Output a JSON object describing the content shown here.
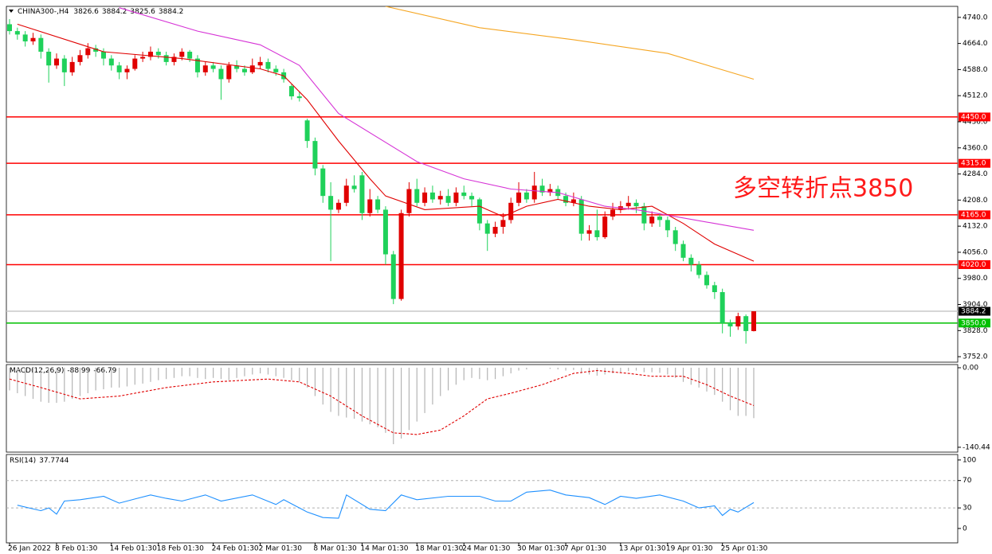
{
  "chart_data": [
    {
      "type": "candlestick",
      "symbol": "CHINA300-,H4",
      "annotation": "多空转折点3850",
      "up_color": "#e00000",
      "down_color": "#1fd15a",
      "categories": [
        "26 Jan 2022",
        null,
        null,
        null,
        null,
        null,
        "8 Feb 01:30",
        null,
        null,
        null,
        null,
        null,
        null,
        "14 Feb 01:30",
        null,
        null,
        null,
        null,
        null,
        "18 Feb 01:30",
        null,
        null,
        null,
        null,
        null,
        null,
        "24 Feb 01:30",
        null,
        null,
        null,
        null,
        null,
        "2 Mar 01:30",
        null,
        null,
        null,
        null,
        null,
        null,
        "8 Mar 01:30",
        null,
        null,
        null,
        null,
        null,
        "14 Mar 01:30",
        null,
        null,
        null,
        null,
        null,
        null,
        "18 Mar 01:30",
        null,
        null,
        null,
        null,
        null,
        "24 Mar 01:30",
        null,
        null,
        null,
        null,
        null,
        null,
        "30 Mar 01:30",
        null,
        null,
        null,
        null,
        null,
        "7 Apr 01:30",
        null,
        null,
        null,
        null,
        null,
        null,
        "13 Apr 01:30",
        null,
        null,
        null,
        null,
        null,
        "19 Apr 01:30",
        null,
        null,
        null,
        null,
        null,
        null,
        "25 Apr 01:30",
        null,
        null,
        null,
        null
      ],
      "ohlc": [
        [
          4720,
          4735,
          4690,
          4700
        ],
        [
          4700,
          4710,
          4675,
          4690
        ],
        [
          4690,
          4700,
          4655,
          4670
        ],
        [
          4670,
          4695,
          4660,
          4680
        ],
        [
          4680,
          4690,
          4620,
          4640
        ],
        [
          4640,
          4650,
          4550,
          4600
        ],
        [
          4600,
          4635,
          4590,
          4620
        ],
        [
          4620,
          4630,
          4540,
          4580
        ],
        [
          4580,
          4625,
          4570,
          4610
        ],
        [
          4610,
          4645,
          4600,
          4630
        ],
        [
          4630,
          4665,
          4620,
          4650
        ],
        [
          4650,
          4660,
          4625,
          4640
        ],
        [
          4640,
          4650,
          4600,
          4620
        ],
        [
          4620,
          4630,
          4585,
          4600
        ],
        [
          4600,
          4610,
          4560,
          4580
        ],
        [
          4580,
          4600,
          4560,
          4590
        ],
        [
          4590,
          4630,
          4585,
          4620
        ],
        [
          4620,
          4640,
          4610,
          4625
        ],
        [
          4625,
          4655,
          4615,
          4640
        ],
        [
          4640,
          4650,
          4620,
          4630
        ],
        [
          4630,
          4640,
          4600,
          4610
        ],
        [
          4610,
          4635,
          4600,
          4625
        ],
        [
          4625,
          4650,
          4615,
          4640
        ],
        [
          4640,
          4645,
          4610,
          4620
        ],
        [
          4620,
          4630,
          4565,
          4580
        ],
        [
          4580,
          4610,
          4570,
          4600
        ],
        [
          4600,
          4610,
          4580,
          4590
        ],
        [
          4590,
          4600,
          4500,
          4560
        ],
        [
          4560,
          4610,
          4550,
          4600
        ],
        [
          4600,
          4615,
          4580,
          4590
        ],
        [
          4590,
          4600,
          4570,
          4580
        ],
        [
          4580,
          4620,
          4575,
          4600
        ],
        [
          4600,
          4625,
          4590,
          4610
        ],
        [
          4610,
          4620,
          4580,
          4590
        ],
        [
          4590,
          4600,
          4570,
          4580
        ],
        [
          4580,
          4590,
          4550,
          4560
        ],
        [
          4540,
          4545,
          4500,
          4510
        ],
        [
          4510,
          4525,
          4495,
          4505
        ],
        [
          4440,
          4445,
          4360,
          4380
        ],
        [
          4380,
          4390,
          4280,
          4300
        ],
        [
          4300,
          4310,
          4200,
          4220
        ],
        [
          4220,
          4260,
          4030,
          4180
        ],
        [
          4180,
          4210,
          4170,
          4200
        ],
        [
          4200,
          4270,
          4190,
          4250
        ],
        [
          4250,
          4280,
          4230,
          4240
        ],
        [
          4280,
          4290,
          4150,
          4170
        ],
        [
          4170,
          4240,
          4160,
          4210
        ],
        [
          4210,
          4220,
          4170,
          4180
        ],
        [
          4180,
          4190,
          4020,
          4050
        ],
        [
          4050,
          4060,
          3905,
          3920
        ],
        [
          3920,
          4180,
          3915,
          4170
        ],
        [
          4170,
          4260,
          4160,
          4240
        ],
        [
          4240,
          4270,
          4190,
          4200
        ],
        [
          4200,
          4245,
          4190,
          4230
        ],
        [
          4230,
          4250,
          4200,
          4210
        ],
        [
          4210,
          4235,
          4195,
          4220
        ],
        [
          4220,
          4240,
          4190,
          4200
        ],
        [
          4200,
          4245,
          4190,
          4230
        ],
        [
          4230,
          4250,
          4210,
          4220
        ],
        [
          4220,
          4230,
          4190,
          4210
        ],
        [
          4210,
          4215,
          4120,
          4140
        ],
        [
          4140,
          4150,
          4060,
          4110
        ],
        [
          4110,
          4145,
          4100,
          4130
        ],
        [
          4130,
          4170,
          4110,
          4150
        ],
        [
          4150,
          4215,
          4140,
          4200
        ],
        [
          4200,
          4260,
          4190,
          4230
        ],
        [
          4230,
          4240,
          4200,
          4210
        ],
        [
          4210,
          4290,
          4200,
          4250
        ],
        [
          4250,
          4270,
          4220,
          4230
        ],
        [
          4230,
          4255,
          4220,
          4240
        ],
        [
          4240,
          4250,
          4210,
          4220
        ],
        [
          4220,
          4230,
          4190,
          4200
        ],
        [
          4200,
          4230,
          4190,
          4210
        ],
        [
          4210,
          4220,
          4090,
          4110
        ],
        [
          4110,
          4135,
          4090,
          4120
        ],
        [
          4120,
          4180,
          4090,
          4100
        ],
        [
          4100,
          4175,
          4095,
          4160
        ],
        [
          4160,
          4200,
          4150,
          4180
        ],
        [
          4180,
          4205,
          4170,
          4190
        ],
        [
          4190,
          4220,
          4180,
          4200
        ],
        [
          4200,
          4210,
          4170,
          4190
        ],
        [
          4190,
          4200,
          4120,
          4140
        ],
        [
          4140,
          4175,
          4130,
          4160
        ],
        [
          4160,
          4170,
          4130,
          4150
        ],
        [
          4150,
          4160,
          4100,
          4120
        ],
        [
          4120,
          4130,
          4060,
          4080
        ],
        [
          4080,
          4090,
          4030,
          4040
        ],
        [
          4040,
          4050,
          4000,
          4020
        ],
        [
          4020,
          4030,
          3980,
          3990
        ],
        [
          3990,
          4000,
          3950,
          3960
        ],
        [
          3960,
          3970,
          3920,
          3940
        ],
        [
          3940,
          3950,
          3820,
          3850
        ],
        [
          3850,
          3860,
          3810,
          3840
        ],
        [
          3840,
          3880,
          3830,
          3870
        ],
        [
          3870,
          3875,
          3790,
          3826.6
        ],
        [
          3826.6,
          3884.2,
          3825.6,
          3884.2
        ]
      ],
      "series": [
        {
          "type": "line",
          "color": "#e00000",
          "x": [
            1,
            12,
            22,
            32,
            35,
            38,
            42,
            46,
            48,
            53,
            60,
            63,
            66,
            70,
            74,
            78,
            82,
            86,
            90,
            95
          ],
          "values": [
            4720,
            4640,
            4620,
            4590,
            4570,
            4500,
            4380,
            4270,
            4220,
            4180,
            4190,
            4160,
            4190,
            4210,
            4190,
            4180,
            4190,
            4140,
            4080,
            4030
          ]
        },
        {
          "type": "line",
          "color": "#d633d6",
          "x": [
            14,
            24,
            32,
            37,
            42,
            52,
            58,
            64,
            70,
            76,
            80,
            85,
            90,
            95
          ],
          "values": [
            4768,
            4700,
            4660,
            4600,
            4460,
            4320,
            4270,
            4240,
            4230,
            4190,
            4180,
            4160,
            4140,
            4120
          ]
        },
        {
          "type": "line",
          "color": "#f5a623",
          "x": [
            48,
            60,
            72,
            84,
            95
          ],
          "values": [
            4772,
            4710,
            4675,
            4635,
            4560
          ]
        }
      ],
      "hlines": [
        {
          "value": 4450,
          "label": "4450.0",
          "color": "#ff0000"
        },
        {
          "value": 4315,
          "label": "4315.0",
          "color": "#ff0000"
        },
        {
          "value": 4165,
          "label": "4165.0",
          "color": "#ff0000"
        },
        {
          "value": 4020,
          "label": "4020.0",
          "color": "#ff0000"
        },
        {
          "value": 3884.2,
          "label": "3884.2",
          "color": "#c8c8c8",
          "badge_color": "#000000"
        },
        {
          "value": 3850,
          "label": "3850.0",
          "color": "#00c000"
        }
      ],
      "ylim": [
        3736,
        4772
      ],
      "yticks": [
        {
          "value": 4740,
          "label": "4740.0"
        },
        {
          "value": 4664,
          "label": "4664.0"
        },
        {
          "value": 4588,
          "label": "4588.0"
        },
        {
          "value": 4512,
          "label": "4512.0"
        },
        {
          "value": 4436,
          "label": "4436.0"
        },
        {
          "value": 4360,
          "label": "4360.0"
        },
        {
          "value": 4284,
          "label": "4284.0"
        },
        {
          "value": 4208,
          "label": "4208.0"
        },
        {
          "value": 4132,
          "label": "4132.0"
        },
        {
          "value": 4056,
          "label": "4056.0"
        },
        {
          "value": 3980,
          "label": "3980.0"
        },
        {
          "value": 3904,
          "label": "3904.0"
        },
        {
          "value": 3828,
          "label": "3828.0"
        },
        {
          "value": 3752,
          "label": "3752.0"
        }
      ]
    },
    {
      "type": "macd",
      "title": "MACD(12,26,9)",
      "series": [
        {
          "type": "bar",
          "color": "#b4b4b4",
          "values": [
            -40,
            -45,
            -50,
            -55,
            -60,
            -62,
            -62,
            -60,
            -55,
            -50,
            -45,
            -40,
            -38,
            -35,
            -35,
            -33,
            -30,
            -28,
            -25,
            -22,
            -20,
            -18,
            -15,
            -15,
            -18,
            -20,
            -18,
            -20,
            -22,
            -18,
            -15,
            -12,
            -10,
            -12,
            -15,
            -18,
            -22,
            -25,
            -35,
            -50,
            -65,
            -78,
            -85,
            -88,
            -90,
            -95,
            -100,
            -105,
            -115,
            -135,
            -125,
            -110,
            -95,
            -80,
            -65,
            -50,
            -40,
            -30,
            -22,
            -18,
            -20,
            -22,
            -20,
            -15,
            -10,
            -5,
            -3,
            0,
            0,
            -2,
            -3,
            -5,
            -4,
            -10,
            -12,
            -14,
            -12,
            -10,
            -8,
            -6,
            -5,
            -8,
            -8,
            -9,
            -12,
            -18,
            -25,
            -30,
            -35,
            -42,
            -48,
            -60,
            -75,
            -85,
            -85,
            -88.99
          ]
        },
        {
          "type": "line",
          "color": "#e00000",
          "dashed": true,
          "x": [
            0,
            4,
            9,
            14,
            20,
            26,
            33,
            37,
            41,
            45,
            49,
            52,
            55,
            58,
            61,
            64,
            68,
            72,
            75,
            79,
            82,
            86,
            89,
            92,
            95
          ],
          "values": [
            -20,
            -35,
            -55,
            -50,
            -35,
            -25,
            -20,
            -25,
            -50,
            -85,
            -115,
            -118,
            -110,
            -85,
            -55,
            -45,
            -30,
            -10,
            -5,
            -10,
            -15,
            -15,
            -30,
            -50,
            -66.79
          ]
        }
      ],
      "ylim": [
        -149,
        5.6
      ],
      "yticks": [
        {
          "value": 0,
          "label": "0.00"
        },
        {
          "value": -140.44,
          "label": "-140.44"
        }
      ]
    },
    {
      "type": "rsi",
      "title": "RSI(14)",
      "series": [
        {
          "type": "line",
          "color": "#1e90ff",
          "x": [
            1,
            4,
            5,
            6,
            7,
            9,
            12,
            14,
            16,
            18,
            20,
            22,
            25,
            27,
            31,
            34,
            35,
            38,
            40,
            42,
            43,
            46,
            48,
            50,
            52,
            56,
            60,
            62,
            64,
            66,
            69,
            71,
            74,
            76,
            78,
            80,
            83,
            86,
            88,
            90,
            91,
            92,
            93,
            95
          ],
          "values": [
            34,
            26,
            30,
            21,
            40,
            42,
            47,
            37,
            43,
            49,
            44,
            40,
            49,
            40,
            49,
            35,
            42,
            24,
            16,
            15,
            49,
            28,
            26,
            49,
            42,
            47,
            47,
            40,
            40,
            53,
            56,
            49,
            45,
            35,
            47,
            44,
            49,
            40,
            30,
            33,
            19,
            28,
            24,
            37.7744
          ]
        }
      ],
      "levels": [
        70,
        30
      ],
      "ylim": [
        -21,
        108
      ],
      "yticks": [
        100,
        70,
        30,
        0
      ]
    }
  ]
}
